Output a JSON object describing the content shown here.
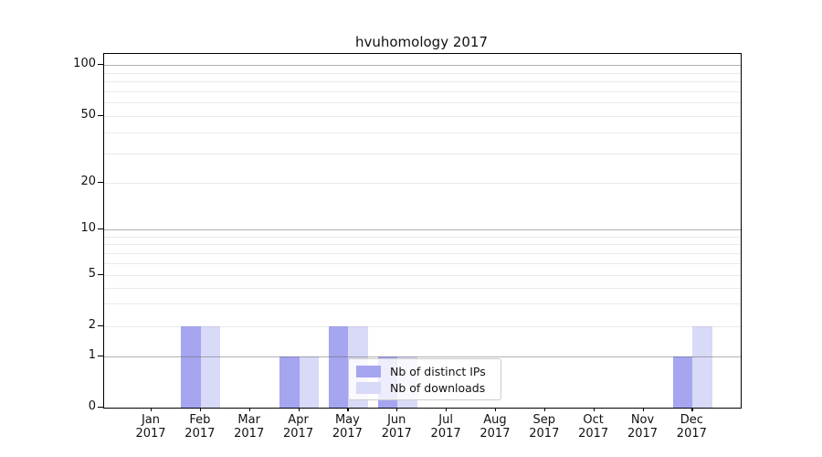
{
  "chart_data": {
    "type": "bar",
    "title": "hvuhomology 2017",
    "categories": [
      "Jan 2017",
      "Feb 2017",
      "Mar 2017",
      "Apr 2017",
      "May 2017",
      "Jun 2017",
      "Jul 2017",
      "Aug 2017",
      "Sep 2017",
      "Oct 2017",
      "Nov 2017",
      "Dec 2017"
    ],
    "series": [
      {
        "name": "Nb of distinct IPs",
        "color": "#a5a5f0",
        "values": [
          0,
          2,
          0,
          1,
          2,
          1,
          0,
          0,
          0,
          0,
          0,
          1
        ]
      },
      {
        "name": "Nb of downloads",
        "color": "#d9d9f8",
        "values": [
          0,
          2,
          0,
          1,
          2,
          1,
          0,
          0,
          0,
          0,
          0,
          2
        ]
      }
    ],
    "yscale": "symlog",
    "ytick_labels": [
      0,
      1,
      2,
      5,
      10,
      20,
      50,
      100
    ],
    "minor_gridline_values": [
      3,
      4,
      6,
      7,
      8,
      9,
      30,
      40,
      60,
      70,
      80,
      90
    ],
    "major_gridline_values": [
      1,
      10,
      100
    ],
    "ylim": [
      0,
      117
    ],
    "xlabel": "",
    "ylabel": "",
    "grid": "on",
    "legend_position": "inside lower-center"
  }
}
